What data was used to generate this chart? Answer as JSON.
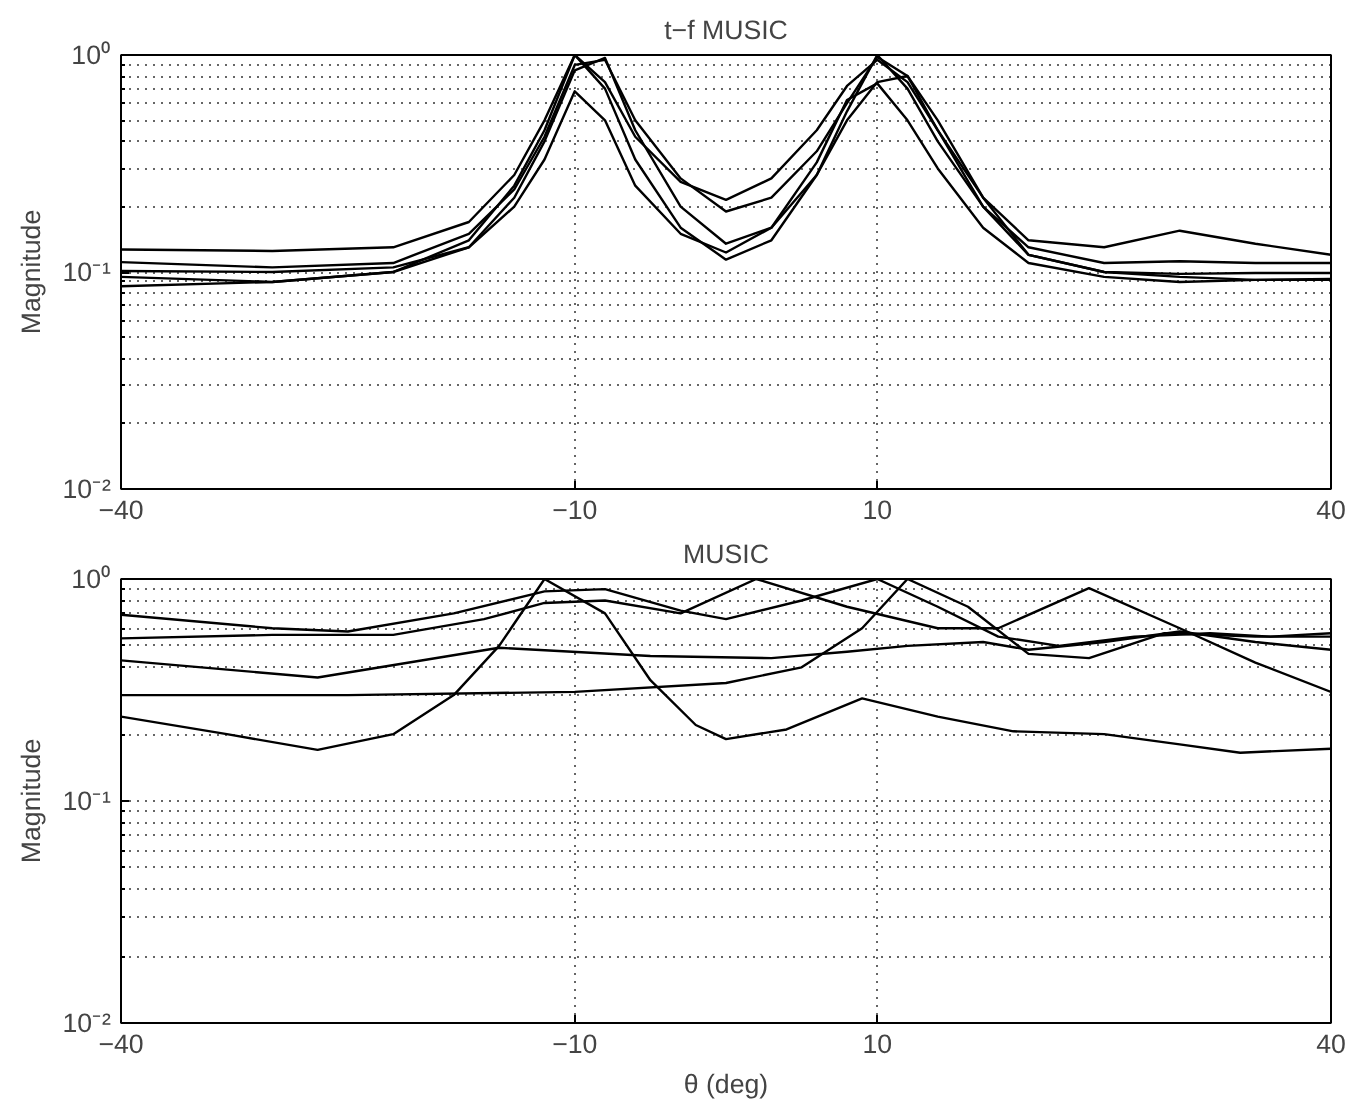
{
  "chart_data": [
    {
      "type": "line",
      "title": "t−f MUSIC",
      "ylabel": "Magnitude",
      "log": "y",
      "grid": true,
      "line_style": "solid",
      "xlim": [
        -40,
        40
      ],
      "xticks": [
        -40,
        -10,
        10,
        40
      ],
      "ylim": [
        0.01,
        1
      ],
      "yticks": [
        {
          "value": 0.01,
          "label": "10⁻²"
        },
        {
          "value": 0.1,
          "label": "10⁻¹"
        },
        {
          "value": 1,
          "label": "10⁰"
        }
      ],
      "x": [
        -40,
        -30,
        -22,
        -17,
        -14,
        -12,
        -10,
        -8,
        -6,
        -3,
        0,
        3,
        6,
        8,
        10,
        12,
        14,
        17,
        20,
        25,
        30,
        35,
        40
      ],
      "series": [
        {
          "color": "#000000",
          "values": [
            0.127,
            0.125,
            0.13,
            0.17,
            0.28,
            0.5,
            1.0,
            0.75,
            0.42,
            0.26,
            0.215,
            0.27,
            0.45,
            0.72,
            0.95,
            0.75,
            0.45,
            0.22,
            0.14,
            0.13,
            0.155,
            0.135,
            0.12
          ]
        },
        {
          "color": "#000000",
          "values": [
            0.111,
            0.105,
            0.11,
            0.15,
            0.24,
            0.42,
            0.9,
            0.95,
            0.5,
            0.27,
            0.19,
            0.22,
            0.36,
            0.6,
            0.98,
            0.8,
            0.45,
            0.2,
            0.13,
            0.11,
            0.112,
            0.11,
            0.11
          ]
        },
        {
          "color": "#000000",
          "values": [
            0.101,
            0.1,
            0.105,
            0.13,
            0.22,
            0.4,
            0.85,
            0.97,
            0.45,
            0.2,
            0.135,
            0.16,
            0.28,
            0.5,
            0.75,
            0.8,
            0.5,
            0.22,
            0.12,
            0.1,
            0.098,
            0.099,
            0.099
          ]
        },
        {
          "color": "#000000",
          "values": [
            0.095,
            0.09,
            0.1,
            0.13,
            0.2,
            0.33,
            0.68,
            0.5,
            0.25,
            0.15,
            0.123,
            0.16,
            0.32,
            0.62,
            0.74,
            0.5,
            0.3,
            0.16,
            0.11,
            0.095,
            0.09,
            0.092,
            0.093
          ]
        },
        {
          "color": "#000000",
          "values": [
            0.086,
            0.09,
            0.1,
            0.14,
            0.25,
            0.45,
            1.0,
            0.7,
            0.33,
            0.16,
            0.114,
            0.14,
            0.28,
            0.55,
            1.0,
            0.7,
            0.4,
            0.2,
            0.12,
            0.1,
            0.095,
            0.092,
            0.092
          ]
        }
      ]
    },
    {
      "type": "line",
      "title": "MUSIC",
      "xlabel": "θ (deg)",
      "ylabel": "Magnitude",
      "log": "y",
      "grid": true,
      "line_style": "solid",
      "xlim": [
        -40,
        40
      ],
      "xticks": [
        -40,
        -10,
        10,
        40
      ],
      "ylim": [
        0.01,
        1
      ],
      "yticks": [
        {
          "value": 0.01,
          "label": "10⁻²"
        },
        {
          "value": 0.1,
          "label": "10⁻¹"
        },
        {
          "value": 1,
          "label": "10⁰"
        }
      ],
      "series": [
        {
          "color": "#000000",
          "x": [
            -40,
            -33,
            -27,
            -22,
            -18,
            -15,
            -12,
            -8,
            -5,
            -2,
            0,
            4,
            9,
            14,
            19,
            25,
            30,
            34,
            40
          ],
          "values": [
            0.24,
            0.2,
            0.17,
            0.2,
            0.3,
            0.5,
            1.0,
            0.7,
            0.35,
            0.22,
            0.19,
            0.21,
            0.29,
            0.24,
            0.206,
            0.2,
            0.18,
            0.165,
            0.172
          ]
        },
        {
          "color": "#000000",
          "x": [
            -40,
            -25,
            -10,
            0,
            5,
            9,
            12,
            16,
            20,
            24,
            29,
            35,
            40
          ],
          "values": [
            0.3,
            0.3,
            0.31,
            0.34,
            0.4,
            0.6,
            1.0,
            0.75,
            0.46,
            0.44,
            0.57,
            0.55,
            0.55
          ]
        },
        {
          "color": "#000000",
          "x": [
            -40,
            -27,
            -15,
            -5,
            3,
            8,
            12,
            17,
            20,
            25,
            30,
            35,
            40
          ],
          "values": [
            0.43,
            0.36,
            0.49,
            0.45,
            0.44,
            0.47,
            0.5,
            0.52,
            0.48,
            0.52,
            0.58,
            0.52,
            0.48
          ]
        },
        {
          "color": "#000000",
          "x": [
            -40,
            -30,
            -22,
            -16,
            -12,
            -8,
            -3,
            2,
            8,
            14,
            18,
            24,
            30,
            35,
            40
          ],
          "values": [
            0.54,
            0.56,
            0.56,
            0.66,
            0.78,
            0.8,
            0.7,
            1.0,
            0.75,
            0.6,
            0.6,
            0.91,
            0.6,
            0.42,
            0.31
          ]
        },
        {
          "color": "#000000",
          "x": [
            -40,
            -30,
            -25,
            -18,
            -12,
            -8,
            -3,
            0,
            5,
            10,
            14,
            18,
            22,
            27,
            32,
            36,
            40
          ],
          "values": [
            0.69,
            0.6,
            0.58,
            0.7,
            0.88,
            0.9,
            0.72,
            0.66,
            0.8,
            1.0,
            0.75,
            0.55,
            0.5,
            0.55,
            0.57,
            0.55,
            0.57
          ]
        }
      ]
    }
  ]
}
